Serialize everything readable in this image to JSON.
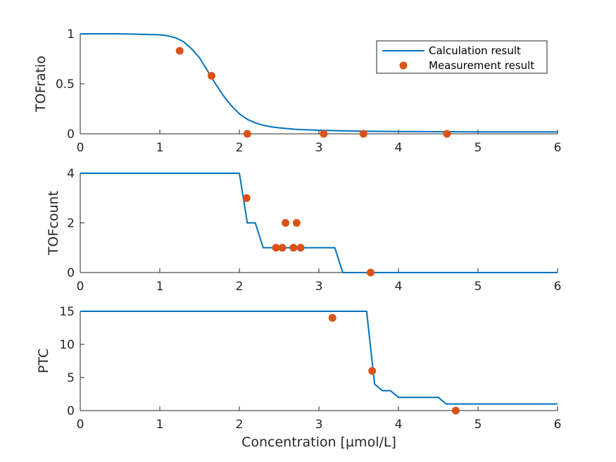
{
  "chart_data": [
    {
      "type": "line",
      "ylabel": "TOFratio",
      "xlabel": "",
      "xlim": [
        0,
        6
      ],
      "ylim": [
        0,
        1
      ],
      "xticks": [
        0,
        1,
        2,
        3,
        4,
        5,
        6
      ],
      "yticks": [
        0,
        0.5,
        1
      ],
      "series": [
        {
          "name": "Calculation result",
          "kind": "line",
          "color": "#0072BD",
          "x": [
            0,
            0.5,
            1.0,
            1.1,
            1.2,
            1.3,
            1.4,
            1.5,
            1.6,
            1.7,
            1.8,
            1.9,
            2.0,
            2.1,
            2.2,
            2.3,
            2.4,
            2.5,
            2.7,
            3.0,
            3.5,
            4.0,
            5.0,
            6.0
          ],
          "y": [
            1.0,
            1.0,
            0.99,
            0.98,
            0.96,
            0.92,
            0.85,
            0.76,
            0.63,
            0.5,
            0.38,
            0.28,
            0.2,
            0.145,
            0.11,
            0.085,
            0.07,
            0.06,
            0.045,
            0.035,
            0.027,
            0.023,
            0.02,
            0.02
          ]
        },
        {
          "name": "Measurement result",
          "kind": "scatter",
          "color": "#D95319",
          "x": [
            1.25,
            1.65,
            2.1,
            3.06,
            3.56,
            4.61
          ],
          "y": [
            0.83,
            0.58,
            0.0,
            0.0,
            0.0,
            0.0
          ]
        }
      ],
      "legend": "top-right",
      "grid": false
    },
    {
      "type": "line",
      "ylabel": "TOFcount",
      "xlabel": "",
      "xlim": [
        0,
        6
      ],
      "ylim": [
        0,
        4
      ],
      "xticks": [
        0,
        1,
        2,
        3,
        4,
        5,
        6
      ],
      "yticks": [
        0,
        2,
        4
      ],
      "series": [
        {
          "name": "Calculation result",
          "kind": "line",
          "color": "#0072BD",
          "x": [
            0,
            2.0,
            2.1,
            2.2,
            2.3,
            2.4,
            3.0,
            3.2,
            3.3,
            6.0
          ],
          "y": [
            4,
            4,
            2,
            2,
            1,
            1,
            1,
            1,
            0,
            0
          ]
        },
        {
          "name": "Measurement result",
          "kind": "scatter",
          "color": "#D95319",
          "x": [
            2.09,
            2.46,
            2.54,
            2.58,
            2.68,
            2.72,
            2.77,
            3.65
          ],
          "y": [
            3,
            1,
            1,
            2,
            1,
            2,
            1,
            0
          ]
        }
      ],
      "grid": false
    },
    {
      "type": "line",
      "ylabel": "PTC",
      "xlabel": "Concentration [µmol/L]",
      "xlim": [
        0,
        6
      ],
      "ylim": [
        0,
        15
      ],
      "xticks": [
        0,
        1,
        2,
        3,
        4,
        5,
        6
      ],
      "yticks": [
        0,
        5,
        10,
        15
      ],
      "series": [
        {
          "name": "Calculation result",
          "kind": "line",
          "color": "#0072BD",
          "x": [
            0,
            3.6,
            3.7,
            3.8,
            3.9,
            4.0,
            4.5,
            4.6,
            6.0
          ],
          "y": [
            15,
            15,
            4,
            3,
            3,
            2,
            2,
            1,
            1
          ]
        },
        {
          "name": "Measurement result",
          "kind": "scatter",
          "color": "#D95319",
          "x": [
            3.17,
            3.67,
            4.72
          ],
          "y": [
            14,
            6,
            0
          ]
        }
      ],
      "grid": false
    }
  ]
}
